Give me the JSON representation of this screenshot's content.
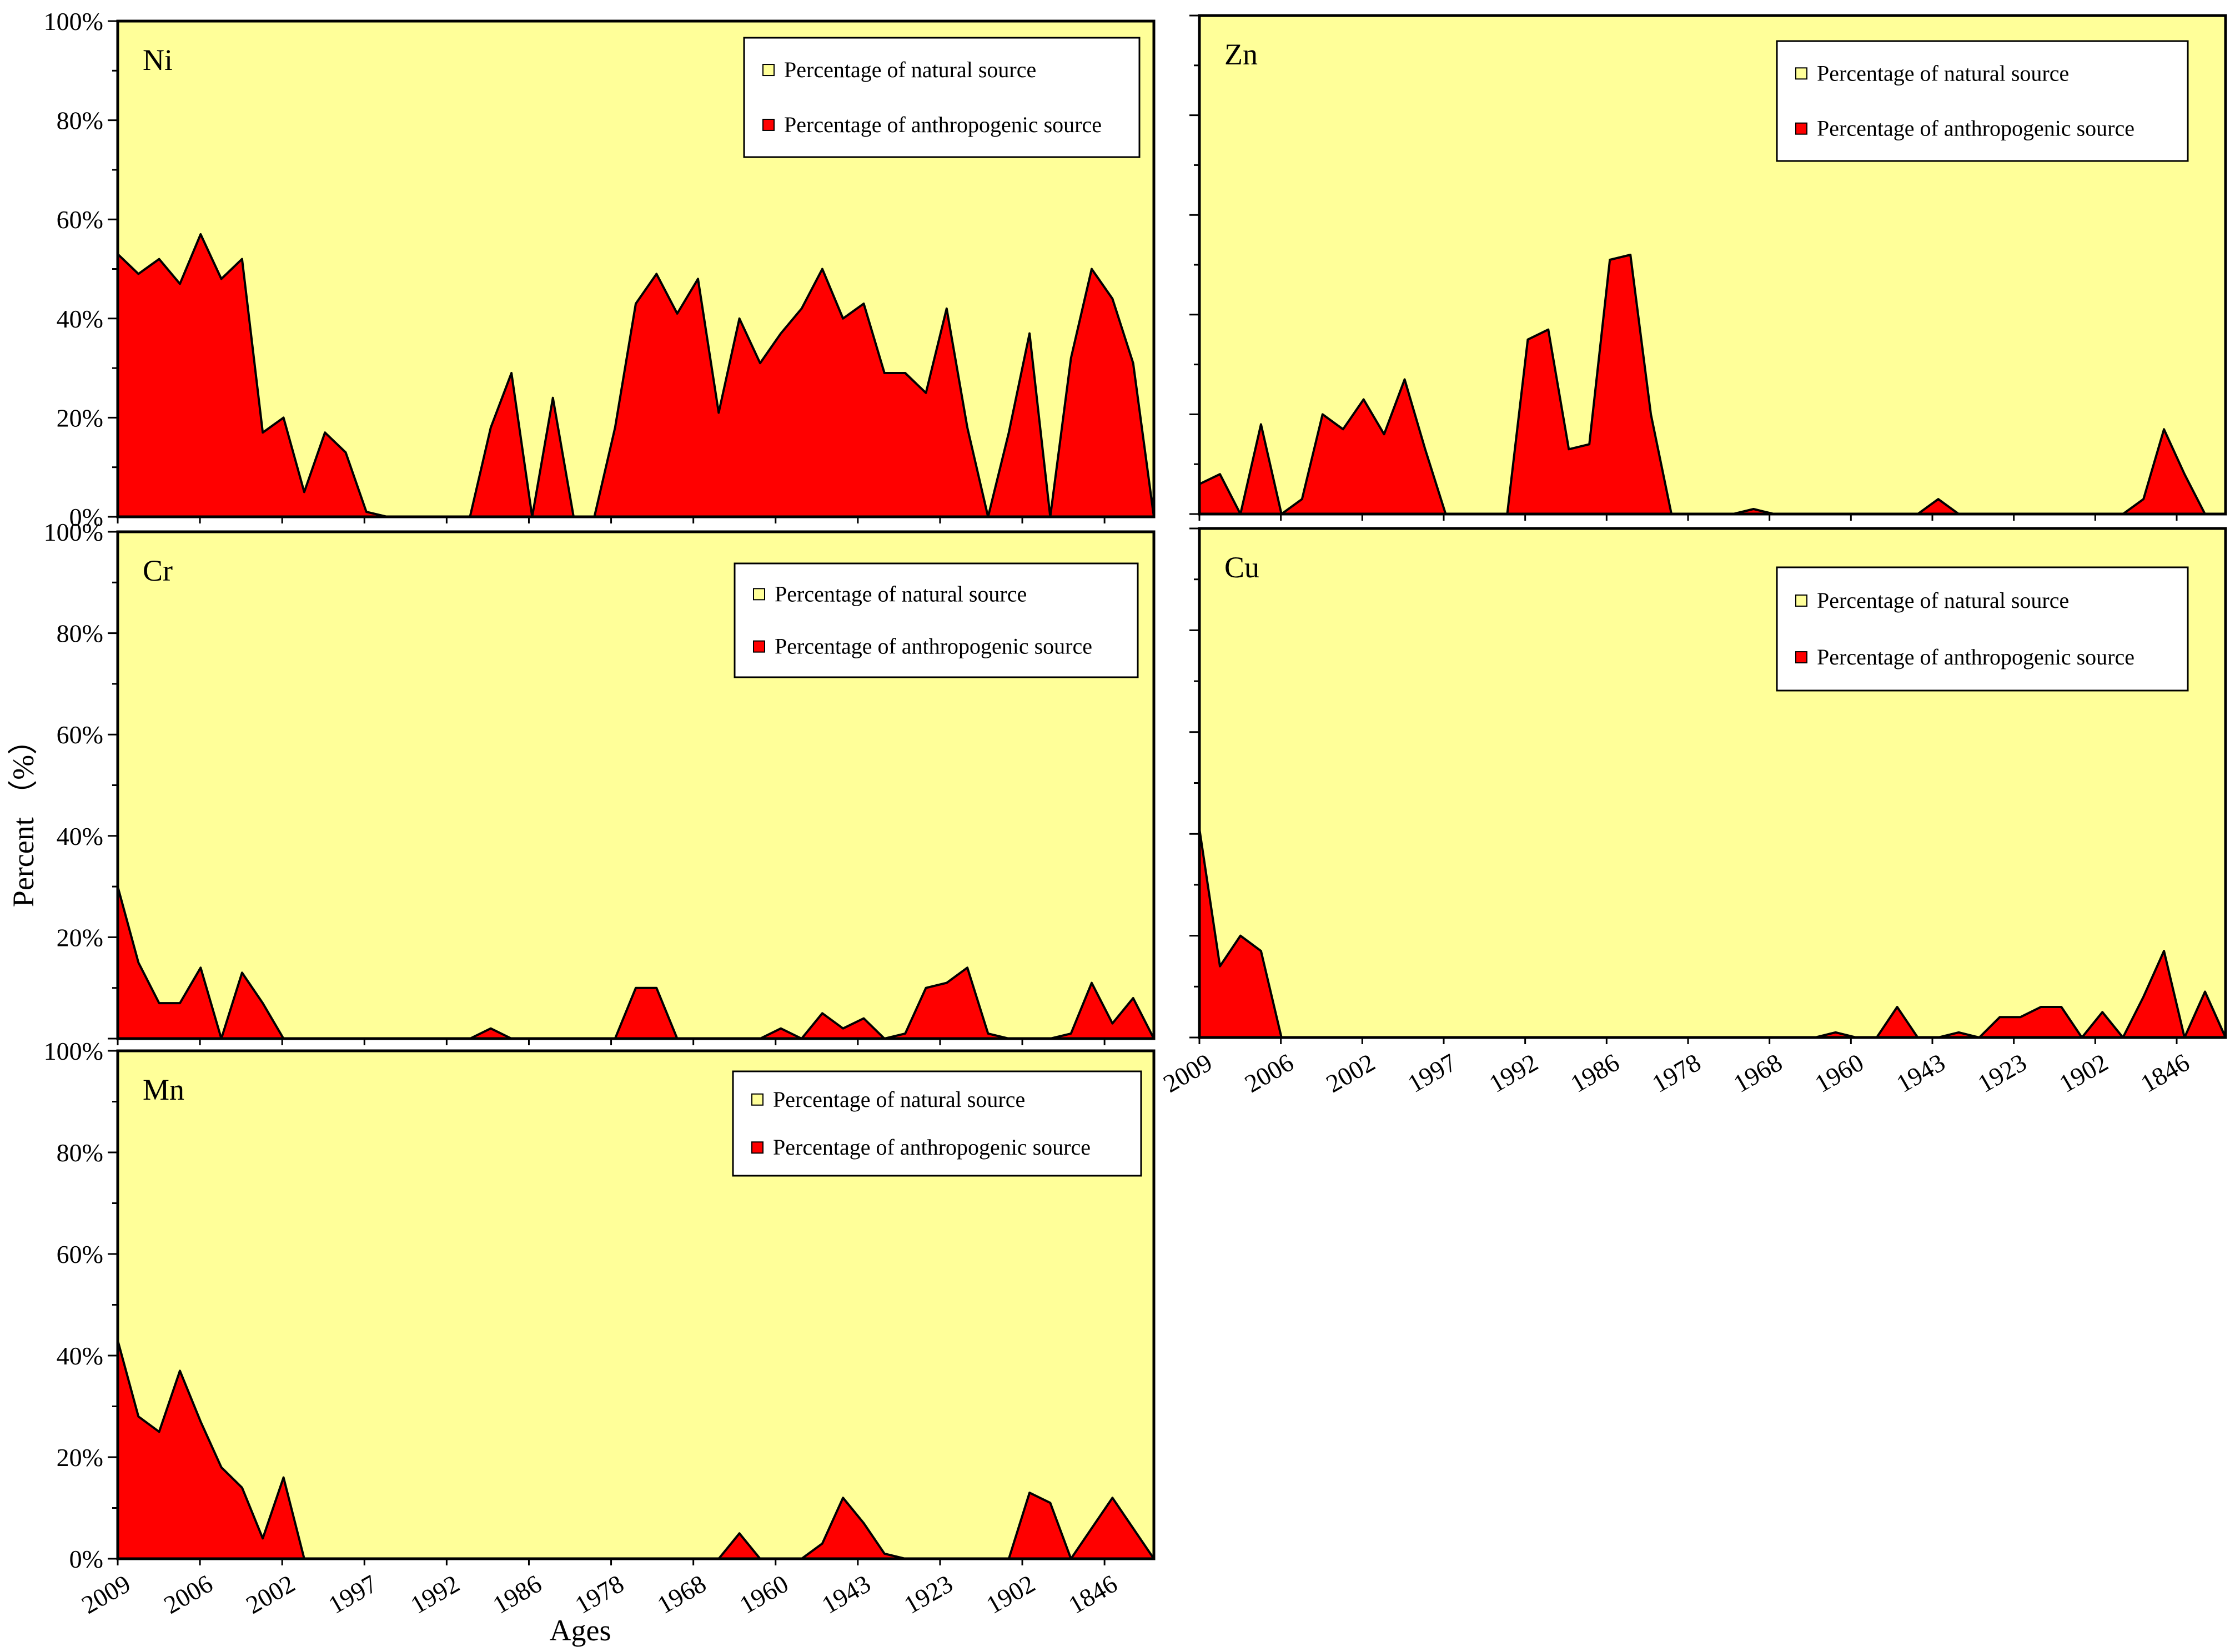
{
  "chart_data": {
    "type": "area",
    "ylabel": "Percent （%）",
    "xlabel": "Ages",
    "ylim": [
      0,
      100
    ],
    "y_ticks": [
      "0%",
      "20%",
      "40%",
      "60%",
      "80%",
      "100%"
    ],
    "x_ticks": [
      "2009",
      "2006",
      "2002",
      "1997",
      "1992",
      "1986",
      "1978",
      "1968",
      "1960",
      "1943",
      "1923",
      "1902",
      "1846"
    ],
    "legend": [
      "Percentage of natural source",
      "Percentage of anthropogenic source"
    ],
    "colors": {
      "natural": "#ffff99",
      "anthropogenic": "#ff0000",
      "outline": "#000000"
    },
    "panels": [
      {
        "label": "Ni",
        "anthropogenic": [
          53,
          49,
          52,
          47,
          57,
          48,
          52,
          17,
          20,
          5,
          17,
          13,
          1,
          0,
          0,
          0,
          0,
          0,
          18,
          29,
          0,
          24,
          0,
          0,
          18,
          43,
          49,
          41,
          48,
          21,
          40,
          31,
          37,
          42,
          50,
          40,
          43,
          29,
          29,
          25,
          42,
          18,
          0,
          17,
          37,
          0,
          32,
          50,
          44,
          31,
          0
        ]
      },
      {
        "label": "Zn",
        "anthropogenic": [
          6,
          8,
          0,
          18,
          0,
          3,
          20,
          17,
          23,
          16,
          27,
          13,
          0,
          0,
          0,
          0,
          35,
          37,
          13,
          14,
          51,
          52,
          20,
          0,
          0,
          0,
          0,
          1,
          0,
          0,
          0,
          0,
          0,
          0,
          0,
          0,
          3,
          0,
          0,
          0,
          0,
          0,
          0,
          0,
          0,
          0,
          3,
          17,
          8,
          0,
          0
        ]
      },
      {
        "label": "Cr",
        "anthropogenic": [
          30,
          15,
          7,
          7,
          14,
          0,
          13,
          7,
          0,
          0,
          0,
          0,
          0,
          0,
          0,
          0,
          0,
          0,
          2,
          0,
          0,
          0,
          0,
          0,
          0,
          10,
          10,
          0,
          0,
          0,
          0,
          0,
          2,
          0,
          5,
          2,
          4,
          0,
          1,
          10,
          11,
          14,
          1,
          0,
          0,
          0,
          1,
          11,
          3,
          8,
          0
        ]
      },
      {
        "label": "Cu",
        "anthropogenic": [
          41,
          14,
          20,
          17,
          0,
          0,
          0,
          0,
          0,
          0,
          0,
          0,
          0,
          0,
          0,
          0,
          0,
          0,
          0,
          0,
          0,
          0,
          0,
          0,
          0,
          0,
          0,
          0,
          0,
          0,
          0,
          1,
          0,
          0,
          6,
          0,
          0,
          1,
          0,
          4,
          4,
          6,
          6,
          0,
          5,
          0,
          8,
          17,
          0,
          9,
          0
        ]
      },
      {
        "label": "Mn",
        "anthropogenic": [
          43,
          28,
          25,
          37,
          27,
          18,
          14,
          4,
          16,
          0,
          0,
          0,
          0,
          0,
          0,
          0,
          0,
          0,
          0,
          0,
          0,
          0,
          0,
          0,
          0,
          0,
          0,
          0,
          0,
          0,
          5,
          0,
          0,
          0,
          3,
          12,
          7,
          1,
          0,
          0,
          0,
          0,
          0,
          0,
          13,
          11,
          0,
          6,
          12,
          6,
          0
        ]
      }
    ]
  }
}
